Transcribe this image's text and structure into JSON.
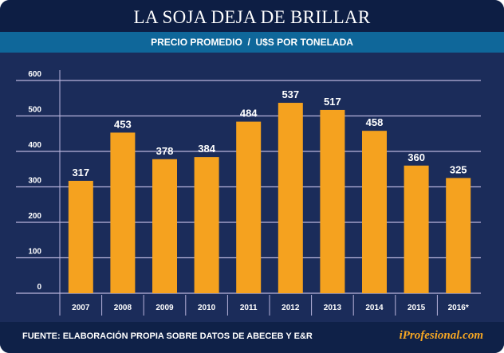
{
  "chart_data": {
    "type": "bar",
    "title": "LA SOJA DEJA DE BRILLAR",
    "subtitle": "PRECIO PROMEDIO  /  U$S POR TONELADA",
    "categories": [
      "2007",
      "2008",
      "2009",
      "2010",
      "2011",
      "2012",
      "2013",
      "2014",
      "2015",
      "2016*"
    ],
    "values": [
      317,
      453,
      378,
      384,
      484,
      537,
      517,
      458,
      360,
      325
    ],
    "yticks": [
      0,
      100,
      200,
      300,
      400,
      500,
      600
    ],
    "ylim": [
      0,
      600
    ],
    "xlabel": "",
    "ylabel": "",
    "grid": true,
    "bar_color": "#f5a21f"
  },
  "footer": {
    "source": "FUENTE: ELABORACIÓN PROPIA SOBRE DATOS DE ABECEB Y E&R",
    "brand": "iProfesional.com"
  }
}
